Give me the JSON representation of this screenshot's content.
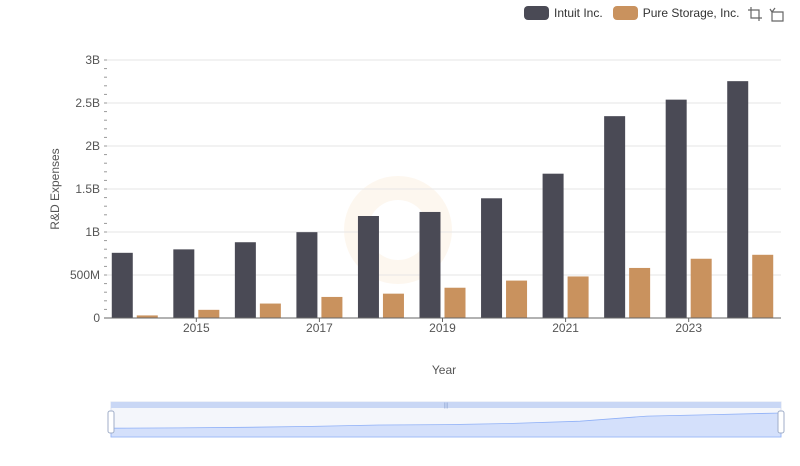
{
  "chart_data": {
    "type": "bar",
    "title": "",
    "xlabel": "Year",
    "ylabel": "R&D Expenses",
    "categories": [
      "2014",
      "2015",
      "2016",
      "2017",
      "2018",
      "2019",
      "2020",
      "2021",
      "2022",
      "2023",
      "2024"
    ],
    "x_tick_labels": [
      "2015",
      "2017",
      "2019",
      "2021",
      "2023"
    ],
    "y_tick_labels": [
      "0",
      "500M",
      "1B",
      "1.5B",
      "2B",
      "2.5B",
      "3B"
    ],
    "ylim": [
      0,
      3000000000
    ],
    "grid": true,
    "legend_position": "top-right",
    "series": [
      {
        "name": "Intuit Inc.",
        "color": "#4a4a55",
        "values": [
          758000000,
          798000000,
          881000000,
          998000000,
          1186000000,
          1233000000,
          1392000000,
          1678000000,
          2347000000,
          2539000000,
          2754000000
        ]
      },
      {
        "name": "Pure Storage, Inc.",
        "color": "#c9925e",
        "values": [
          30000000,
          95000000,
          168000000,
          245000000,
          283000000,
          352000000,
          435000000,
          483000000,
          582000000,
          689000000,
          735000000
        ]
      }
    ]
  },
  "legend": {
    "items": [
      {
        "label": "Intuit Inc.",
        "color": "#4a4a55"
      },
      {
        "label": "Pure Storage, Inc.",
        "color": "#c9925e"
      }
    ]
  },
  "toolbox": {
    "icons": [
      "zoom-icon",
      "restore-icon"
    ]
  },
  "data_zoom": {
    "start_percent": 0,
    "end_percent": 100,
    "fill_color": "#d4e0fb",
    "line_color": "#8fb0f7"
  }
}
